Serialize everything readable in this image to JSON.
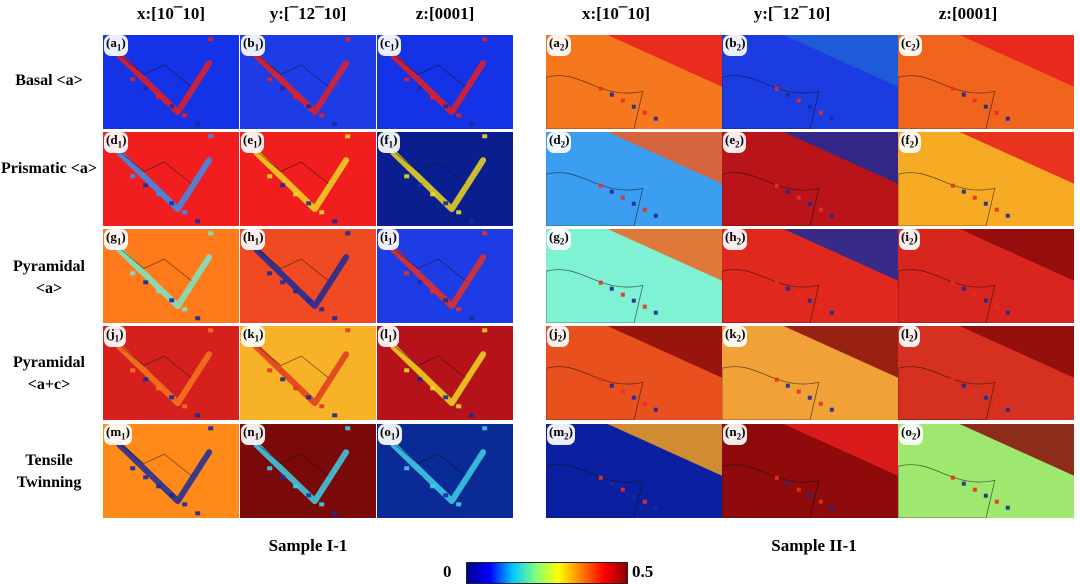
{
  "headers": {
    "x": "x:[10¯10]",
    "y": "y:[¯12¯10]",
    "z": "z:[0001]"
  },
  "rows": [
    {
      "label": "Basal <a>",
      "letter": "a"
    },
    {
      "label": "Prismatic <a>",
      "letter": "d"
    },
    {
      "label": "Pyramidal <a>",
      "letter": "g"
    },
    {
      "label": "Pyramidal <a+c>",
      "letter": "j"
    },
    {
      "label": "Tensile Twinning",
      "letter": "m"
    }
  ],
  "samples": [
    {
      "label": "Sample I-1",
      "index": "1"
    },
    {
      "label": "Sample II-1",
      "index": "2"
    }
  ],
  "colorbar": {
    "min_label": "0",
    "max_label": "0.5",
    "colors": [
      "#00008f",
      "#0000ff",
      "#00c8ff",
      "#7fff7f",
      "#ffff00",
      "#ff7f00",
      "#ff0000",
      "#8f0000"
    ]
  },
  "panel_colors": {
    "sample1": [
      [
        "#1432e6",
        "#1e3ce6",
        "#1432e6"
      ],
      [
        "#f01e1e",
        "#f01e1e",
        "#0a1e90"
      ],
      [
        "#ff7a1a",
        "#f04a22",
        "#1e3ce6"
      ],
      [
        "#d6201e",
        "#f7b227",
        "#b5121a"
      ],
      [
        "#ff8a1a",
        "#7a0a0a",
        "#0a2a96"
      ]
    ],
    "sample2": [
      [
        "#f5781e",
        "#1a3ce0",
        "#f0641e"
      ],
      [
        "#3c9ef0",
        "#b8141a",
        "#f7aa24"
      ],
      [
        "#7ef2d2",
        "#e0281e",
        "#d8261e"
      ],
      [
        "#e8501e",
        "#f0a238",
        "#d63020"
      ],
      [
        "#0a20a0",
        "#8f0a0a",
        "#9ee870"
      ]
    ]
  },
  "panel_accents": {
    "sample1": [
      [
        "#e81e1e",
        "#e81e1e",
        "#e81e1e"
      ],
      [
        "#3c8ef0",
        "#f0d820",
        "#f0d820"
      ],
      [
        "#7ae6c8",
        "#1a2a9a",
        "#e8301e"
      ],
      [
        "#f5781e",
        "#e03a1e",
        "#f0d820"
      ],
      [
        "#1a2a9a",
        "#3cd0e8",
        "#3cd0e8"
      ]
    ],
    "sample2": [
      [
        "#e81e1e",
        "#2060d8",
        "#e81e1e"
      ],
      [
        "#f05a1e",
        "#1a2a9a",
        "#e81e1e"
      ],
      [
        "#f0641e",
        "#1a2a9a",
        "#8a0a0a"
      ],
      [
        "#8a0a0a",
        "#8a0a0a",
        "#8a0a0a"
      ],
      [
        "#f5a01e",
        "#e81e1e",
        "#8a0a0a"
      ]
    ]
  }
}
